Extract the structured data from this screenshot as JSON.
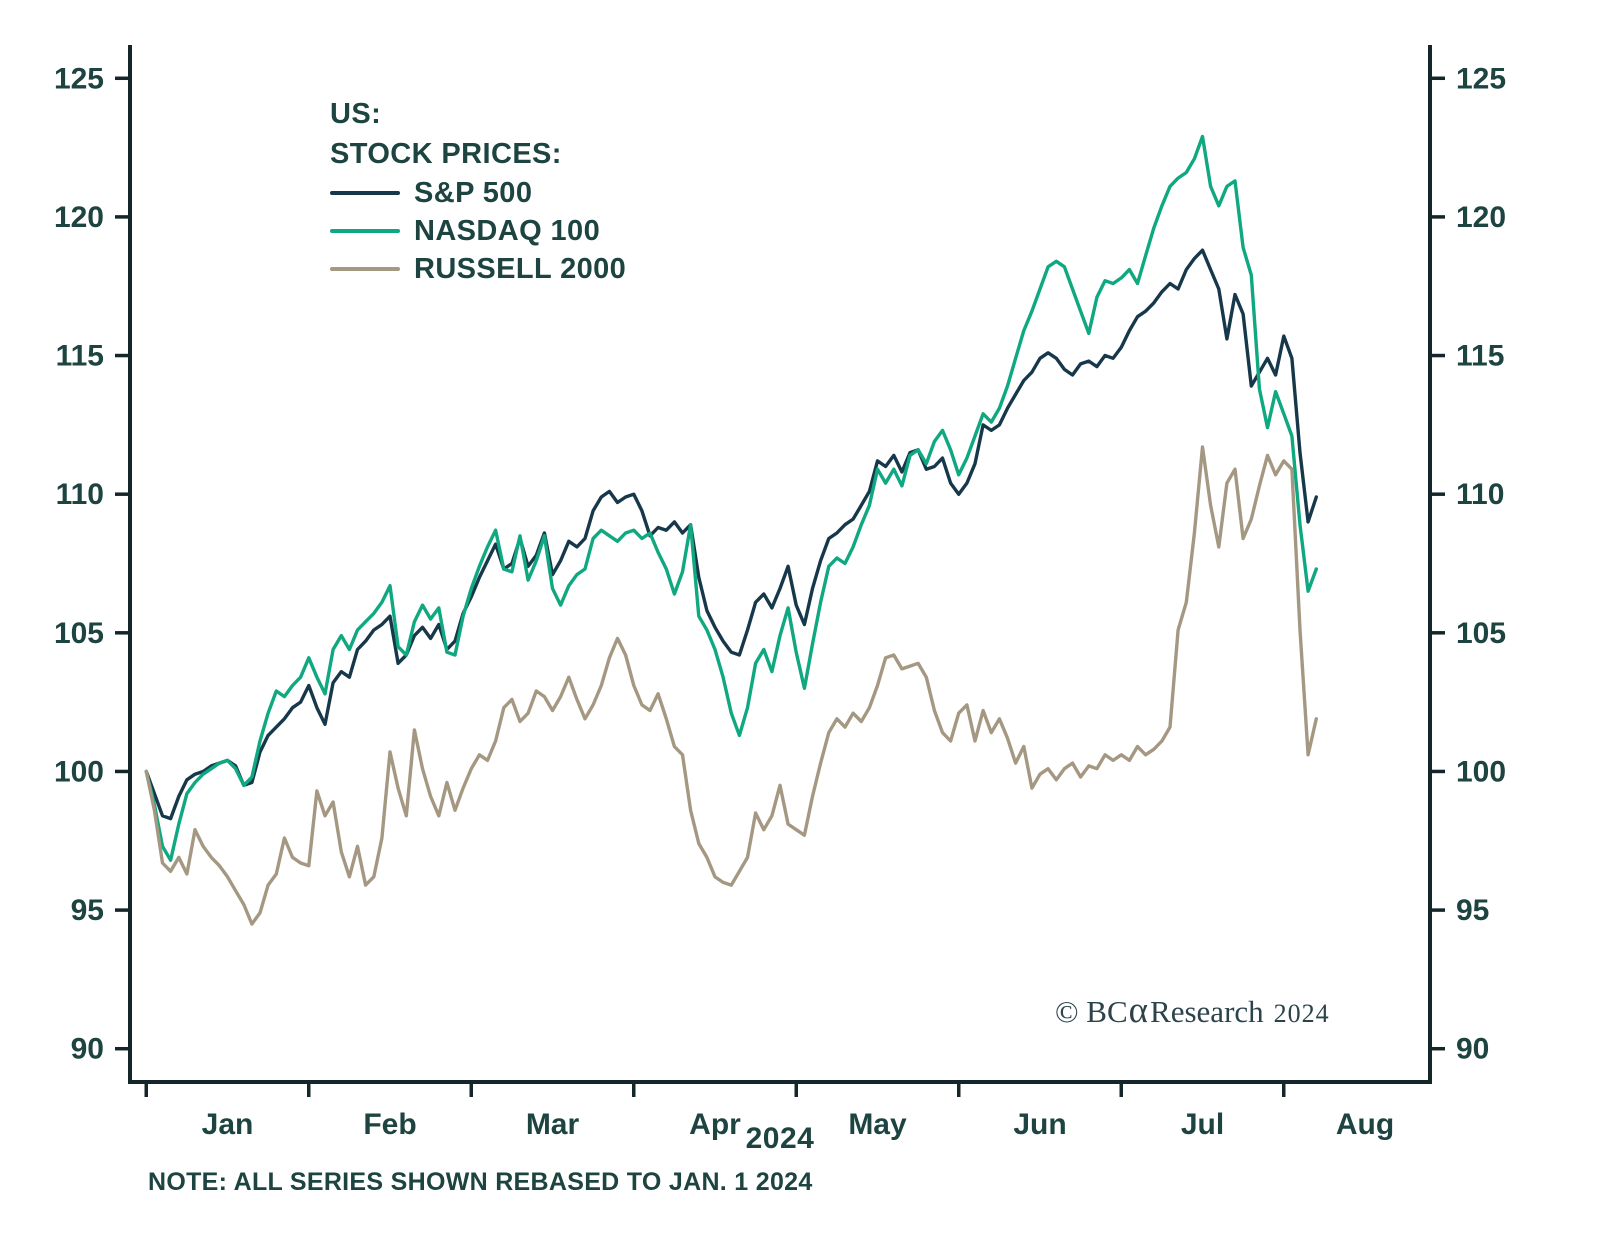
{
  "chart_data": {
    "type": "line",
    "title_lines": [
      "US:",
      "STOCK PRICES:"
    ],
    "xlabel": "2024",
    "x_tick_labels": [
      "Jan",
      "Feb",
      "Mar",
      "Apr",
      "May",
      "Jun",
      "Jul",
      "Aug"
    ],
    "x_ticks": [
      0,
      1,
      2,
      3,
      4,
      5,
      6,
      7
    ],
    "y_ticks": [
      90,
      95,
      100,
      105,
      110,
      115,
      120,
      125
    ],
    "xlim": [
      -0.1,
      7.9
    ],
    "ylim": [
      88.8,
      126.2
    ],
    "x": {
      "start": 0,
      "step": 0.05,
      "unit": "months since Jan 1 2024"
    },
    "grid": false,
    "legend_position": "top-left-inside",
    "colors": {
      "text": "#1d4440",
      "axis": "#15262b"
    },
    "series": [
      {
        "name": "S&P 500",
        "color": "#17384a",
        "values": [
          100.0,
          99.2,
          98.4,
          98.3,
          99.1,
          99.7,
          99.9,
          100.0,
          100.2,
          100.3,
          100.4,
          100.2,
          99.5,
          99.6,
          100.7,
          101.3,
          101.6,
          101.9,
          102.3,
          102.5,
          103.1,
          102.3,
          101.7,
          103.2,
          103.6,
          103.4,
          104.4,
          104.7,
          105.1,
          105.3,
          105.6,
          103.9,
          104.2,
          104.9,
          105.2,
          104.8,
          105.3,
          104.4,
          104.7,
          105.7,
          106.3,
          107.0,
          107.6,
          108.2,
          107.3,
          107.5,
          108.4,
          107.4,
          107.8,
          108.6,
          107.1,
          107.6,
          108.3,
          108.1,
          108.4,
          109.4,
          109.9,
          110.1,
          109.7,
          109.9,
          110.0,
          109.4,
          108.5,
          108.8,
          108.7,
          109.0,
          108.6,
          108.9,
          107.0,
          105.8,
          105.2,
          104.7,
          104.3,
          104.2,
          105.1,
          106.1,
          106.4,
          105.9,
          106.6,
          107.4,
          106.0,
          105.3,
          106.6,
          107.6,
          108.4,
          108.6,
          108.9,
          109.1,
          109.6,
          110.1,
          111.2,
          111.0,
          111.4,
          110.8,
          111.5,
          111.6,
          110.9,
          111.0,
          111.3,
          110.4,
          110.0,
          110.4,
          111.1,
          112.5,
          112.3,
          112.5,
          113.1,
          113.6,
          114.1,
          114.4,
          114.9,
          115.1,
          114.9,
          114.5,
          114.3,
          114.7,
          114.8,
          114.6,
          115.0,
          114.9,
          115.3,
          115.9,
          116.4,
          116.6,
          116.9,
          117.3,
          117.6,
          117.4,
          118.1,
          118.5,
          118.8,
          118.1,
          117.4,
          115.6,
          117.2,
          116.5,
          113.9,
          114.4,
          114.9,
          114.3,
          115.7,
          114.9,
          111.5,
          109.0,
          109.9
        ]
      },
      {
        "name": "NASDAQ 100",
        "color": "#0fa880",
        "values": [
          100.0,
          98.8,
          97.3,
          96.8,
          98.1,
          99.2,
          99.6,
          99.9,
          100.1,
          100.3,
          100.4,
          100.1,
          99.5,
          99.8,
          101.1,
          102.1,
          102.9,
          102.7,
          103.1,
          103.4,
          104.1,
          103.4,
          102.8,
          104.4,
          104.9,
          104.4,
          105.1,
          105.4,
          105.7,
          106.1,
          106.7,
          104.5,
          104.2,
          105.4,
          106.0,
          105.5,
          105.9,
          104.3,
          104.2,
          105.6,
          106.6,
          107.4,
          108.1,
          108.7,
          107.3,
          107.2,
          108.5,
          106.9,
          107.6,
          108.5,
          106.6,
          106.0,
          106.7,
          107.1,
          107.3,
          108.4,
          108.7,
          108.5,
          108.3,
          108.6,
          108.7,
          108.4,
          108.6,
          107.9,
          107.3,
          106.4,
          107.2,
          108.9,
          105.6,
          105.1,
          104.4,
          103.4,
          102.1,
          101.3,
          102.3,
          103.9,
          104.4,
          103.6,
          104.9,
          105.9,
          104.3,
          103.0,
          104.6,
          106.1,
          107.4,
          107.7,
          107.5,
          108.1,
          108.9,
          109.6,
          110.9,
          110.4,
          110.9,
          110.3,
          111.4,
          111.6,
          111.1,
          111.9,
          112.3,
          111.6,
          110.7,
          111.3,
          112.1,
          112.9,
          112.6,
          113.1,
          113.9,
          114.9,
          115.9,
          116.6,
          117.4,
          118.2,
          118.4,
          118.2,
          117.4,
          116.6,
          115.8,
          117.1,
          117.7,
          117.6,
          117.8,
          118.1,
          117.6,
          118.6,
          119.6,
          120.4,
          121.1,
          121.4,
          121.6,
          122.1,
          122.9,
          121.1,
          120.4,
          121.1,
          121.3,
          118.9,
          117.9,
          113.8,
          112.4,
          113.7,
          112.9,
          112.1,
          108.9,
          106.5,
          107.3
        ]
      },
      {
        "name": "RUSSELL 2000",
        "color": "#a59882",
        "values": [
          100.0,
          98.6,
          96.7,
          96.4,
          96.9,
          96.3,
          97.9,
          97.3,
          96.9,
          96.6,
          96.2,
          95.7,
          95.2,
          94.5,
          94.9,
          95.9,
          96.3,
          97.6,
          96.9,
          96.7,
          96.6,
          99.3,
          98.4,
          98.9,
          97.1,
          96.2,
          97.3,
          95.9,
          96.2,
          97.6,
          100.7,
          99.4,
          98.4,
          101.5,
          100.1,
          99.1,
          98.4,
          99.6,
          98.6,
          99.4,
          100.1,
          100.6,
          100.4,
          101.1,
          102.3,
          102.6,
          101.8,
          102.1,
          102.9,
          102.7,
          102.2,
          102.7,
          103.4,
          102.6,
          101.9,
          102.4,
          103.1,
          104.1,
          104.8,
          104.2,
          103.1,
          102.4,
          102.2,
          102.8,
          101.9,
          100.9,
          100.6,
          98.6,
          97.4,
          96.9,
          96.2,
          96.0,
          95.9,
          96.4,
          96.9,
          98.5,
          97.9,
          98.4,
          99.5,
          98.1,
          97.9,
          97.7,
          99.1,
          100.3,
          101.4,
          101.9,
          101.6,
          102.1,
          101.8,
          102.3,
          103.1,
          104.1,
          104.2,
          103.7,
          103.8,
          103.9,
          103.4,
          102.2,
          101.4,
          101.1,
          102.1,
          102.4,
          101.1,
          102.2,
          101.4,
          101.9,
          101.2,
          100.3,
          100.9,
          99.4,
          99.9,
          100.1,
          99.7,
          100.1,
          100.3,
          99.8,
          100.2,
          100.1,
          100.6,
          100.4,
          100.6,
          100.4,
          100.9,
          100.6,
          100.8,
          101.1,
          101.6,
          105.1,
          106.1,
          108.6,
          111.7,
          109.6,
          108.1,
          110.4,
          110.9,
          108.4,
          109.1,
          110.3,
          111.4,
          110.7,
          111.2,
          110.9,
          105.1,
          100.6,
          101.9
        ]
      }
    ]
  },
  "annotations": {
    "note": "NOTE: ALL SERIES SHOWN REBASED TO JAN. 1 2024",
    "copyright": {
      "prefix": "© BC",
      "alpha": "α",
      "suffix": "Research",
      "year": "2024"
    }
  }
}
